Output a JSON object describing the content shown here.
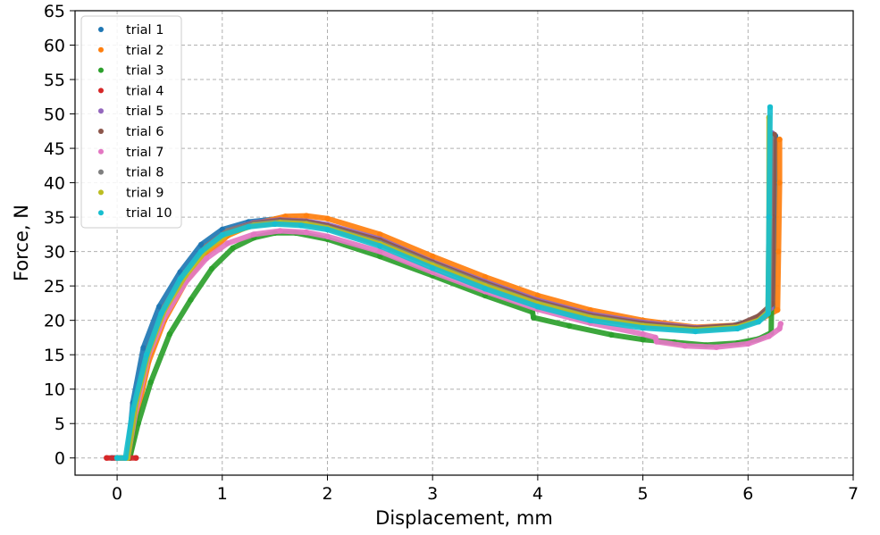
{
  "chart_data": {
    "type": "scatter",
    "title": "",
    "xlabel": "Displacement, mm",
    "ylabel": "Force, N",
    "xlim": [
      -0.4,
      7
    ],
    "ylim": [
      -2.5,
      65
    ],
    "xticks": [
      0,
      1,
      2,
      3,
      4,
      5,
      6,
      7
    ],
    "yticks": [
      0,
      5,
      10,
      15,
      20,
      25,
      30,
      35,
      40,
      45,
      50,
      55,
      60,
      65
    ],
    "grid": true,
    "grid_style": "dashed",
    "legend_position": "top-left",
    "series": [
      {
        "name": "trial 1",
        "color": "#1f77b4",
        "points": [
          [
            -0.05,
            0
          ],
          [
            0.1,
            0
          ],
          [
            0.15,
            8
          ],
          [
            0.25,
            16
          ],
          [
            0.4,
            22
          ],
          [
            0.6,
            27
          ],
          [
            0.8,
            31
          ],
          [
            1.0,
            33.2
          ],
          [
            1.25,
            34.3
          ],
          [
            1.5,
            34.7
          ],
          [
            1.75,
            34.5
          ],
          [
            2.0,
            33.8
          ],
          [
            2.5,
            31.5
          ],
          [
            3.0,
            28.3
          ],
          [
            3.5,
            25.5
          ],
          [
            4.0,
            22.8
          ],
          [
            4.5,
            20.8
          ],
          [
            5.0,
            19.6
          ],
          [
            5.5,
            18.8
          ],
          [
            5.85,
            19.2
          ],
          [
            6.0,
            19.8
          ],
          [
            6.15,
            21.0
          ],
          [
            6.24,
            22.0
          ],
          [
            6.25,
            30
          ],
          [
            6.26,
            40
          ],
          [
            6.26,
            46.8
          ]
        ]
      },
      {
        "name": "trial 2",
        "color": "#ff7f0e",
        "points": [
          [
            0.02,
            0
          ],
          [
            0.12,
            0
          ],
          [
            0.2,
            7
          ],
          [
            0.3,
            14
          ],
          [
            0.45,
            20
          ],
          [
            0.65,
            25.5
          ],
          [
            0.85,
            29.5
          ],
          [
            1.05,
            32.3
          ],
          [
            1.3,
            34.0
          ],
          [
            1.6,
            35.1
          ],
          [
            1.8,
            35.2
          ],
          [
            2.0,
            34.8
          ],
          [
            2.5,
            32.5
          ],
          [
            3.0,
            29.3
          ],
          [
            3.5,
            26.3
          ],
          [
            4.0,
            23.6
          ],
          [
            4.5,
            21.5
          ],
          [
            5.0,
            20.0
          ],
          [
            5.5,
            19.0
          ],
          [
            5.9,
            19.3
          ],
          [
            6.1,
            20.0
          ],
          [
            6.28,
            21.5
          ],
          [
            6.29,
            30
          ],
          [
            6.3,
            40
          ],
          [
            6.3,
            46.3
          ]
        ]
      },
      {
        "name": "trial 3",
        "color": "#2ca02c",
        "points": [
          [
            0.02,
            0
          ],
          [
            0.12,
            0
          ],
          [
            0.2,
            5
          ],
          [
            0.32,
            11
          ],
          [
            0.5,
            18
          ],
          [
            0.7,
            23
          ],
          [
            0.9,
            27.5
          ],
          [
            1.1,
            30.5
          ],
          [
            1.3,
            32.0
          ],
          [
            1.5,
            32.7
          ],
          [
            1.7,
            32.7
          ],
          [
            2.0,
            31.8
          ],
          [
            2.5,
            29.3
          ],
          [
            3.0,
            26.5
          ],
          [
            3.5,
            23.6
          ],
          [
            3.95,
            21.2
          ],
          [
            3.96,
            20.4
          ],
          [
            4.3,
            19.2
          ],
          [
            4.7,
            17.9
          ],
          [
            5.0,
            17.2
          ],
          [
            5.3,
            16.8
          ],
          [
            5.6,
            16.4
          ],
          [
            5.9,
            16.7
          ],
          [
            6.1,
            17.3
          ],
          [
            6.22,
            18.2
          ],
          [
            6.23,
            30
          ],
          [
            6.23,
            45.3
          ]
        ]
      },
      {
        "name": "trial 4",
        "color": "#d62728",
        "points": [
          [
            -0.1,
            0
          ],
          [
            0.0,
            0
          ],
          [
            0.1,
            0
          ],
          [
            0.18,
            0
          ]
        ]
      },
      {
        "name": "trial 5",
        "color": "#9467bd",
        "points": [
          [
            0.0,
            0
          ],
          [
            0.1,
            0
          ],
          [
            0.18,
            8
          ],
          [
            0.3,
            16
          ],
          [
            0.45,
            22
          ],
          [
            0.65,
            27
          ],
          [
            0.85,
            30.8
          ],
          [
            1.05,
            33
          ],
          [
            1.3,
            34.2
          ],
          [
            1.55,
            34.6
          ],
          [
            1.8,
            34.4
          ],
          [
            2.0,
            33.9
          ],
          [
            2.5,
            31.8
          ],
          [
            3.0,
            28.5
          ],
          [
            3.5,
            25.6
          ],
          [
            4.0,
            22.9
          ],
          [
            4.5,
            20.9
          ],
          [
            5.0,
            19.7
          ],
          [
            5.5,
            18.9
          ],
          [
            5.9,
            19.2
          ],
          [
            6.1,
            20.3
          ],
          [
            6.22,
            21.8
          ],
          [
            6.23,
            35
          ],
          [
            6.23,
            47.2
          ]
        ]
      },
      {
        "name": "trial 6",
        "color": "#8c564b",
        "points": [
          [
            0.0,
            0
          ],
          [
            0.1,
            0
          ],
          [
            0.18,
            8
          ],
          [
            0.3,
            16
          ],
          [
            0.45,
            22
          ],
          [
            0.65,
            27
          ],
          [
            0.85,
            30.8
          ],
          [
            1.05,
            33
          ],
          [
            1.3,
            34.1
          ],
          [
            1.55,
            34.5
          ],
          [
            1.8,
            34.3
          ],
          [
            2.0,
            33.7
          ],
          [
            2.5,
            31.6
          ],
          [
            3.0,
            28.4
          ],
          [
            3.5,
            25.4
          ],
          [
            4.0,
            22.7
          ],
          [
            4.5,
            20.7
          ],
          [
            5.0,
            19.5
          ],
          [
            5.5,
            18.8
          ],
          [
            5.9,
            19.3
          ],
          [
            6.1,
            20.6
          ],
          [
            6.23,
            22.4
          ],
          [
            6.24,
            35
          ],
          [
            6.25,
            47.0
          ]
        ]
      },
      {
        "name": "trial 7",
        "color": "#e377c2",
        "points": [
          [
            0.0,
            0
          ],
          [
            0.1,
            0
          ],
          [
            0.18,
            7
          ],
          [
            0.3,
            15
          ],
          [
            0.45,
            20.5
          ],
          [
            0.65,
            25.5
          ],
          [
            0.85,
            29
          ],
          [
            1.05,
            31.2
          ],
          [
            1.3,
            32.5
          ],
          [
            1.55,
            33.0
          ],
          [
            1.8,
            32.8
          ],
          [
            2.0,
            32.2
          ],
          [
            2.5,
            30.0
          ],
          [
            3.0,
            27.0
          ],
          [
            3.5,
            24.2
          ],
          [
            4.0,
            21.6
          ],
          [
            4.5,
            19.6
          ],
          [
            5.0,
            18.0
          ],
          [
            5.12,
            17.5
          ],
          [
            5.13,
            16.9
          ],
          [
            5.4,
            16.3
          ],
          [
            5.7,
            16.1
          ],
          [
            6.0,
            16.6
          ],
          [
            6.2,
            17.7
          ],
          [
            6.3,
            18.8
          ],
          [
            6.31,
            19.5
          ]
        ]
      },
      {
        "name": "trial 8",
        "color": "#7f7f7f",
        "points": [
          [
            0.0,
            0
          ],
          [
            0.1,
            0
          ],
          [
            0.18,
            8
          ],
          [
            0.3,
            16
          ],
          [
            0.45,
            22
          ],
          [
            0.65,
            27
          ],
          [
            0.85,
            30.8
          ],
          [
            1.05,
            33
          ],
          [
            1.3,
            34.0
          ],
          [
            1.55,
            34.3
          ],
          [
            1.8,
            34.1
          ],
          [
            2.0,
            33.5
          ],
          [
            2.5,
            31.3
          ],
          [
            3.0,
            28.2
          ],
          [
            3.5,
            25.2
          ],
          [
            4.0,
            22.5
          ],
          [
            4.5,
            20.5
          ],
          [
            5.0,
            19.3
          ],
          [
            5.5,
            18.6
          ],
          [
            5.9,
            19.0
          ],
          [
            6.1,
            20.0
          ],
          [
            6.2,
            21.5
          ],
          [
            6.21,
            35
          ],
          [
            6.22,
            46.5
          ]
        ]
      },
      {
        "name": "trial 9",
        "color": "#bcbd22",
        "points": [
          [
            0.0,
            0
          ],
          [
            0.1,
            0
          ],
          [
            0.18,
            8
          ],
          [
            0.3,
            15.5
          ],
          [
            0.45,
            21.5
          ],
          [
            0.65,
            26.5
          ],
          [
            0.85,
            30.3
          ],
          [
            1.05,
            32.6
          ],
          [
            1.3,
            33.8
          ],
          [
            1.55,
            34.2
          ],
          [
            1.8,
            34.0
          ],
          [
            2.0,
            33.4
          ],
          [
            2.5,
            31.1
          ],
          [
            3.0,
            28.0
          ],
          [
            3.5,
            25.0
          ],
          [
            4.0,
            22.4
          ],
          [
            4.5,
            20.4
          ],
          [
            5.0,
            19.2
          ],
          [
            5.5,
            18.6
          ],
          [
            5.9,
            19.0
          ],
          [
            6.1,
            20.0
          ],
          [
            6.19,
            21.2
          ],
          [
            6.2,
            35
          ],
          [
            6.2,
            49.5
          ]
        ]
      },
      {
        "name": "trial 10",
        "color": "#17becf",
        "points": [
          [
            0.0,
            0
          ],
          [
            0.08,
            0
          ],
          [
            0.15,
            7
          ],
          [
            0.28,
            15
          ],
          [
            0.42,
            21
          ],
          [
            0.6,
            26
          ],
          [
            0.8,
            30
          ],
          [
            1.0,
            32.4
          ],
          [
            1.25,
            33.6
          ],
          [
            1.5,
            34.0
          ],
          [
            1.75,
            33.8
          ],
          [
            2.0,
            33.2
          ],
          [
            2.5,
            30.8
          ],
          [
            3.0,
            27.6
          ],
          [
            3.5,
            24.6
          ],
          [
            4.0,
            22.0
          ],
          [
            4.5,
            20.0
          ],
          [
            5.0,
            18.9
          ],
          [
            5.5,
            18.4
          ],
          [
            5.9,
            18.8
          ],
          [
            6.1,
            19.8
          ],
          [
            6.19,
            21.0
          ],
          [
            6.2,
            35
          ],
          [
            6.21,
            51.0
          ]
        ]
      }
    ]
  }
}
